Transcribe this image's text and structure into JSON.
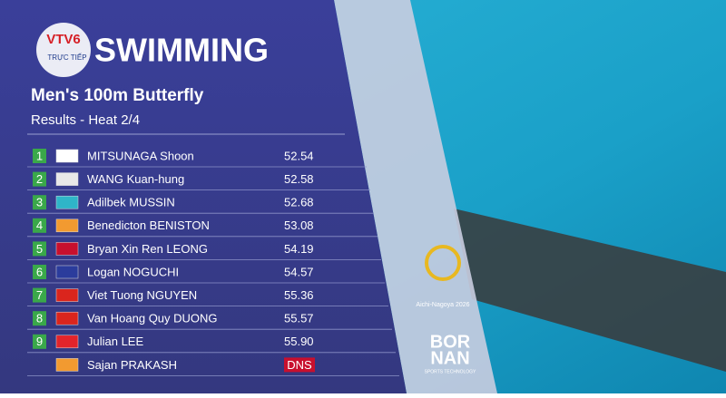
{
  "header": {
    "channel": "VTV6",
    "live": "TRỰC TIẾP",
    "sport": "SWIMMING",
    "event": "Men's 100m Butterfly",
    "subtitle": "Results - Heat 2/4"
  },
  "table": {
    "rows": [
      {
        "rank": "1",
        "name": "MITSUNAGA Shoon",
        "time": "52.54"
      },
      {
        "rank": "2",
        "name": "WANG Kuan-hung",
        "time": "52.58"
      },
      {
        "rank": "3",
        "name": "Adilbek MUSSIN",
        "time": "52.68"
      },
      {
        "rank": "4",
        "name": "Benedicton BENISTON",
        "time": "53.08"
      },
      {
        "rank": "5",
        "name": "Bryan Xin Ren LEONG",
        "time": "54.19"
      },
      {
        "rank": "6",
        "name": "Logan NOGUCHI",
        "time": "54.57"
      },
      {
        "rank": "7",
        "name": "Viet Tuong NGUYEN",
        "time": "55.36"
      },
      {
        "rank": "8",
        "name": "Van Hoang Quy DUONG",
        "time": "55.57"
      },
      {
        "rank": "9",
        "name": "Julian LEE",
        "time": "55.90"
      },
      {
        "name": "Sajan PRAKASH",
        "time": "DNS"
      }
    ]
  },
  "logos": {
    "games": "Aichi-Nagoya 2026",
    "sponsor_top": "BOR",
    "sponsor_bottom": "NAN",
    "sponsor_tag": "SPORTS TECHNOLOGY"
  }
}
